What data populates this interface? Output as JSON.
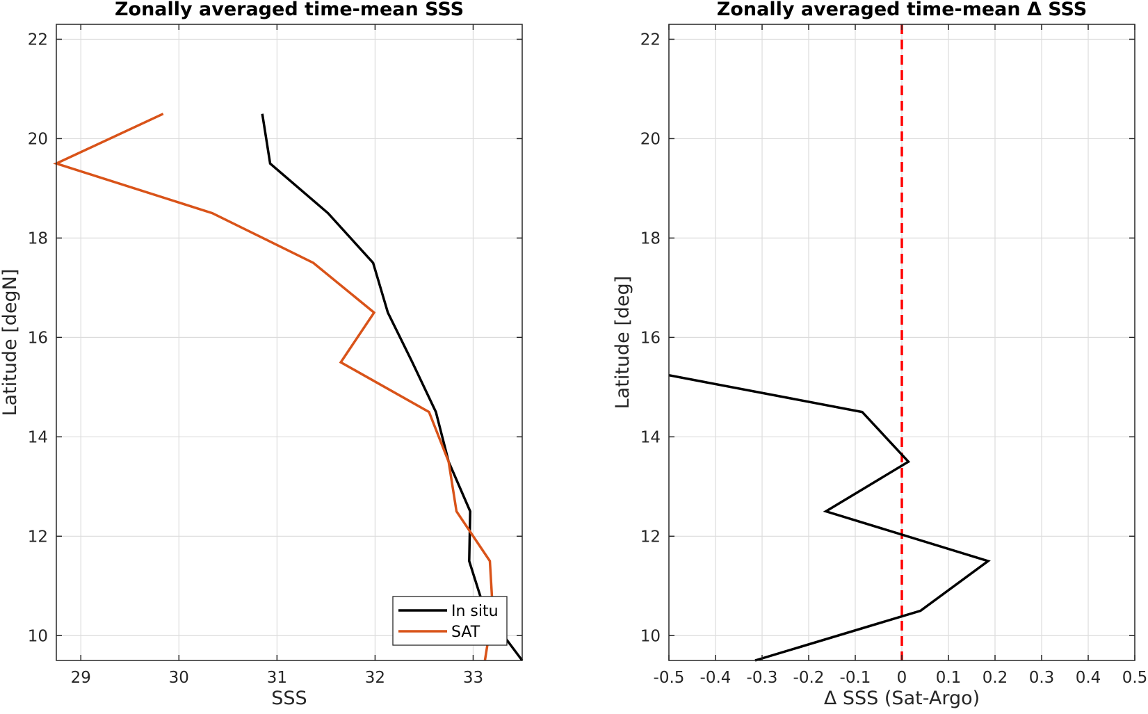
{
  "chart_data": [
    {
      "type": "line",
      "title": "Zonally averaged time-mean SSS",
      "xlabel": "SSS",
      "ylabel": "Latitude [degN]",
      "xlim": [
        28.75,
        33.5
      ],
      "ylim": [
        9.5,
        22.3
      ],
      "xticks": [
        29,
        30,
        31,
        32,
        33
      ],
      "yticks": [
        10,
        12,
        14,
        16,
        18,
        20,
        22
      ],
      "grid": true,
      "legend_position": "bottom-right",
      "series": [
        {
          "name": "In situ",
          "color": "#000000",
          "points": [
            [
              30.85,
              20.5
            ],
            [
              30.93,
              19.5
            ],
            [
              31.52,
              18.5
            ],
            [
              31.98,
              17.5
            ],
            [
              32.13,
              16.5
            ],
            [
              32.38,
              15.5
            ],
            [
              32.62,
              14.5
            ],
            [
              32.75,
              13.5
            ],
            [
              32.97,
              12.5
            ],
            [
              32.96,
              11.5
            ],
            [
              33.12,
              10.5
            ],
            [
              33.5,
              9.5
            ]
          ]
        },
        {
          "name": "SAT",
          "color": "#D95319",
          "points": [
            [
              29.84,
              20.5
            ],
            [
              28.75,
              19.5
            ],
            [
              30.34,
              18.5
            ],
            [
              31.37,
              17.5
            ],
            [
              31.99,
              16.5
            ],
            [
              31.65,
              15.5
            ],
            [
              32.55,
              14.5
            ],
            [
              32.75,
              13.5
            ],
            [
              32.83,
              12.5
            ],
            [
              33.17,
              11.5
            ],
            [
              33.2,
              10.5
            ],
            [
              33.12,
              9.5
            ]
          ]
        }
      ]
    },
    {
      "type": "line",
      "title": "Zonally averaged time-mean Δ SSS",
      "xlabel": "Δ SSS (Sat-Argo)",
      "ylabel": "Latitude [deg]",
      "xlim": [
        -0.5,
        0.5
      ],
      "ylim": [
        9.5,
        22.3
      ],
      "xticks": [
        -0.5,
        -0.4,
        -0.3,
        -0.2,
        -0.1,
        0,
        0.1,
        0.2,
        0.3,
        0.4,
        0.5
      ],
      "xtick_labels": [
        "-0.5",
        "-0.4",
        "-0.3",
        "-0.2",
        "-0.1",
        "0",
        "0.1",
        "0.2",
        "0.3",
        "0.4",
        "0.5"
      ],
      "yticks": [
        10,
        12,
        14,
        16,
        18,
        20,
        22
      ],
      "grid": true,
      "reference_line": {
        "x": 0,
        "color": "#FF0000",
        "style": "dashed"
      },
      "series": [
        {
          "color": "#000000",
          "points": [
            [
              -0.5,
              15.24
            ],
            [
              -0.085,
              14.5
            ],
            [
              0.014,
              13.5
            ],
            [
              -0.163,
              12.5
            ],
            [
              0.185,
              11.5
            ],
            [
              0.04,
              10.5
            ],
            [
              -0.315,
              9.5
            ]
          ]
        }
      ]
    }
  ]
}
